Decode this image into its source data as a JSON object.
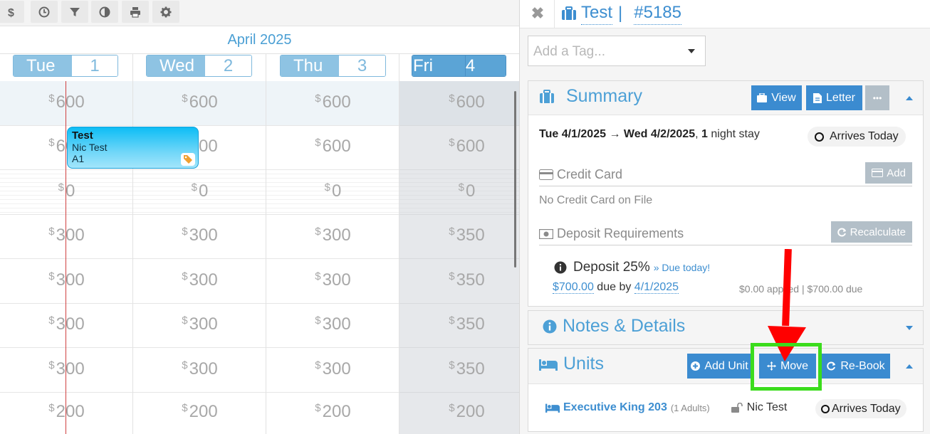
{
  "toolbar": {
    "icons": [
      "dollar-icon",
      "clock-icon",
      "filter-icon",
      "contrast-icon",
      "print-icon",
      "gear-icon"
    ]
  },
  "calendar": {
    "month": "April 2025",
    "days": [
      {
        "name": "Tue",
        "num": "1"
      },
      {
        "name": "Wed",
        "num": "2"
      },
      {
        "name": "Thu",
        "num": "3"
      },
      {
        "name": "Fri",
        "num": "4"
      }
    ],
    "rows": [
      [
        "600",
        "600",
        "600",
        "600"
      ],
      [
        "600",
        "600",
        "600",
        "600"
      ],
      [
        "0",
        "0",
        "0",
        "0"
      ],
      [
        "300",
        "300",
        "300",
        "350"
      ],
      [
        "300",
        "300",
        "300",
        "350"
      ],
      [
        "300",
        "300",
        "300",
        "350"
      ],
      [
        "300",
        "300",
        "300",
        "350"
      ],
      [
        "200",
        "200",
        "200",
        "200"
      ]
    ],
    "currency_symbol": "$",
    "booking": {
      "title": "Test",
      "guest": "Nic Test",
      "unit": "A1"
    }
  },
  "reservation": {
    "name": "Test",
    "separator": "|",
    "number": "#5185",
    "tag_placeholder": "Add a Tag..."
  },
  "summary": {
    "title": "Summary",
    "view_label": "View",
    "letter_label": "Letter",
    "more_label": "•••",
    "date_from": "Tue 4/1/2025",
    "arrow": "→",
    "date_to": "Wed 4/2/2025",
    "nights_num": "1",
    "nights_text": "night stay",
    "status": "Arrives Today",
    "credit_card_label": "Credit Card",
    "add_label": "Add",
    "no_card": "No Credit Card on File",
    "deposit_label": "Deposit Requirements",
    "recalculate_label": "Recalculate",
    "deposit_title": "Deposit 25%",
    "due_today": "» Due today!",
    "deposit_amount": "$700.00",
    "due_by_text": "due by",
    "due_date": "4/1/2025",
    "applied": "$0.00 applied | $700.00 due"
  },
  "notes": {
    "title": "Notes & Details"
  },
  "units": {
    "title": "Units",
    "add_unit_label": "Add Unit",
    "move_label": "Move",
    "rebook_label": "Re-Book",
    "unit_name": "Executive King 203",
    "occupancy": "(1 Adults)",
    "guest": "Nic Test",
    "status": "Arrives Today"
  },
  "colors": {
    "accent": "#3b8bd0",
    "annotation_box": "#3bdc1c",
    "annotation_arrow": "#ff0000"
  }
}
